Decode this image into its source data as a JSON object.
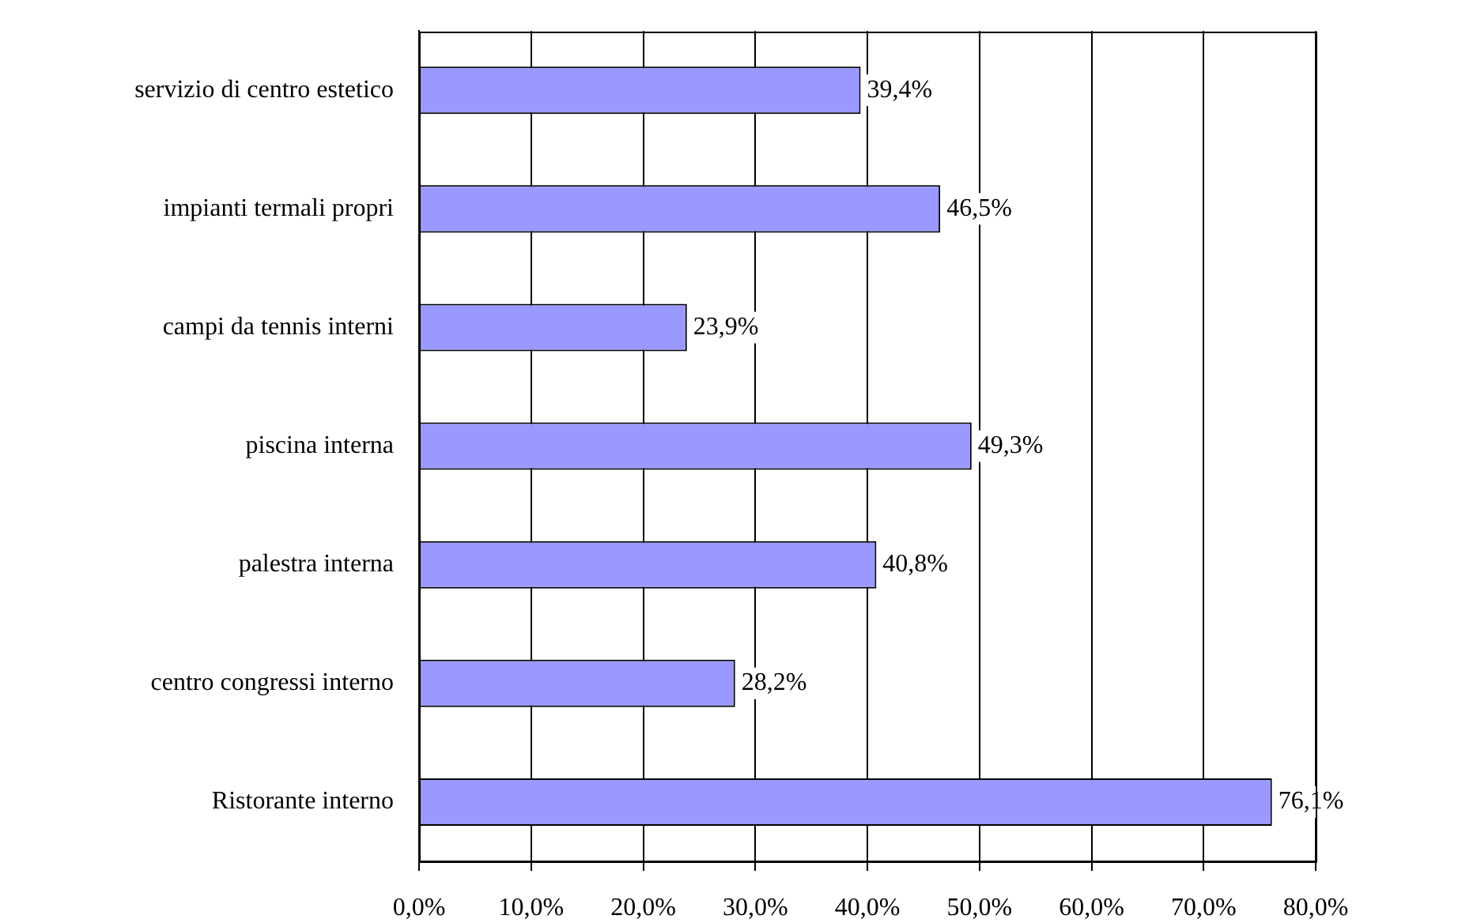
{
  "chart_data": {
    "type": "bar",
    "orientation": "horizontal",
    "categories": [
      "servizio di centro estetico",
      "impianti termali propri",
      "campi da tennis interni",
      "piscina interna",
      "palestra interna",
      "centro congressi interno",
      "Ristorante interno"
    ],
    "values": [
      39.4,
      46.5,
      23.9,
      49.3,
      40.8,
      28.2,
      76.1
    ],
    "value_labels": [
      "39,4%",
      "46,5%",
      "23,9%",
      "49,3%",
      "40,8%",
      "28,2%",
      "76,1%"
    ],
    "color": "#9999ff",
    "xlim": [
      0,
      80
    ],
    "xticks": [
      {
        "value": 0,
        "label": "0,0%"
      },
      {
        "value": 10,
        "label": "10,0%"
      },
      {
        "value": 20,
        "label": "20,0%"
      },
      {
        "value": 30,
        "label": "30,0%"
      },
      {
        "value": 40,
        "label": "40,0%"
      },
      {
        "value": 50,
        "label": "50,0%"
      },
      {
        "value": 60,
        "label": "60,0%"
      },
      {
        "value": 70,
        "label": "70,0%"
      },
      {
        "value": 80,
        "label": "80,0%"
      }
    ],
    "grid": "x",
    "legend": false
  }
}
